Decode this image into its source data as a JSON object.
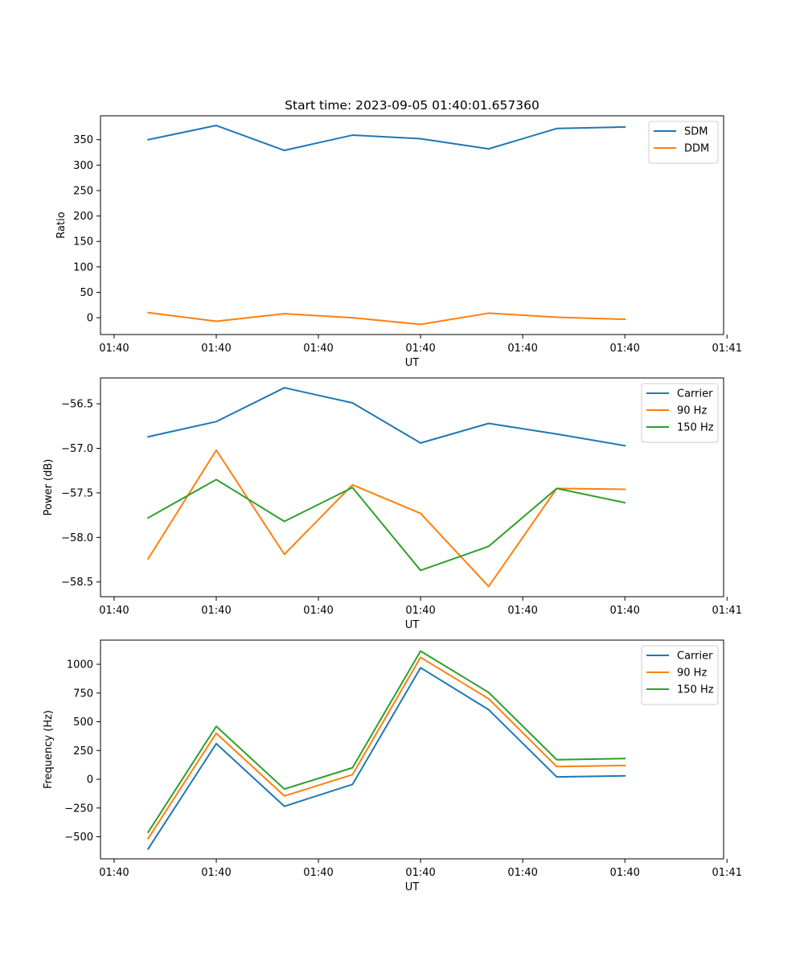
{
  "chart_data": [
    {
      "type": "line",
      "title": "Start time: 2023-09-05 01:40:01.657360",
      "xlabel": "UT",
      "ylabel": "Ratio",
      "x": [
        0.5,
        1.5,
        2.5,
        3.5,
        4.5,
        5.5,
        6.5,
        7.5
      ],
      "xlim": [
        -0.2,
        8.95
      ],
      "xticks": [
        0,
        1.5,
        3,
        4.5,
        6,
        7.5,
        9
      ],
      "xtick_labels": [
        "01:40",
        "01:40",
        "01:40",
        "01:40",
        "01:40",
        "01:40",
        "01:41"
      ],
      "ylim": [
        -33,
        397
      ],
      "yticks": [
        0,
        50,
        100,
        150,
        200,
        250,
        300,
        350
      ],
      "ytick_labels": [
        "0",
        "50",
        "100",
        "150",
        "200",
        "250",
        "300",
        "350"
      ],
      "legend_position": "top-right",
      "series": [
        {
          "name": "SDM",
          "color": "#1f77b4",
          "values": [
            350,
            378,
            329,
            359,
            352,
            332,
            372,
            375
          ]
        },
        {
          "name": "DDM",
          "color": "#ff7f0e",
          "values": [
            10,
            -7,
            8,
            0,
            -13,
            9,
            1,
            -3
          ]
        }
      ]
    },
    {
      "type": "line",
      "xlabel": "UT",
      "ylabel": "Power (dB)",
      "x": [
        0.5,
        1.5,
        2.5,
        3.5,
        4.5,
        5.5,
        6.5,
        7.5
      ],
      "xlim": [
        -0.2,
        8.95
      ],
      "xticks": [
        0,
        1.5,
        3,
        4.5,
        6,
        7.5,
        9
      ],
      "xtick_labels": [
        "01:40",
        "01:40",
        "01:40",
        "01:40",
        "01:40",
        "01:40",
        "01:41"
      ],
      "ylim": [
        -58.665,
        -56.21
      ],
      "yticks": [
        -58.5,
        -58.0,
        -57.5,
        -57.0,
        -56.5
      ],
      "ytick_labels": [
        "−58.5",
        "−58.0",
        "−57.5",
        "−57.0",
        "−56.5"
      ],
      "legend_position": "top-right",
      "series": [
        {
          "name": "Carrier",
          "color": "#1f77b4",
          "values": [
            -56.87,
            -56.7,
            -56.32,
            -56.49,
            -56.94,
            -56.72,
            -56.84,
            -56.97
          ]
        },
        {
          "name": "90 Hz",
          "color": "#ff7f0e",
          "values": [
            -58.24,
            -57.02,
            -58.19,
            -57.41,
            -57.73,
            -58.55,
            -57.45,
            -57.46
          ]
        },
        {
          "name": "150 Hz",
          "color": "#2ca02c",
          "values": [
            -57.78,
            -57.35,
            -57.82,
            -57.44,
            -58.37,
            -58.1,
            -57.45,
            -57.61
          ]
        }
      ]
    },
    {
      "type": "line",
      "xlabel": "UT",
      "ylabel": "Frequency (Hz)",
      "x": [
        0.5,
        1.5,
        2.5,
        3.5,
        4.5,
        5.5,
        6.5,
        7.5
      ],
      "xlim": [
        -0.2,
        8.95
      ],
      "xticks": [
        0,
        1.5,
        3,
        4.5,
        6,
        7.5,
        9
      ],
      "xtick_labels": [
        "01:40",
        "01:40",
        "01:40",
        "01:40",
        "01:40",
        "01:40",
        "01:41"
      ],
      "ylim": [
        -692,
        1210
      ],
      "yticks": [
        -500,
        -250,
        0,
        250,
        500,
        750,
        1000
      ],
      "ytick_labels": [
        "−500",
        "−250",
        "0",
        "250",
        "500",
        "750",
        "1000"
      ],
      "legend_position": "top-right",
      "series": [
        {
          "name": "Carrier",
          "color": "#1f77b4",
          "values": [
            -605,
            310,
            -235,
            -45,
            970,
            605,
            20,
            30
          ]
        },
        {
          "name": "90 Hz",
          "color": "#ff7f0e",
          "values": [
            -515,
            400,
            -145,
            40,
            1060,
            700,
            110,
            120
          ]
        },
        {
          "name": "150 Hz",
          "color": "#2ca02c",
          "values": [
            -460,
            460,
            -85,
            100,
            1115,
            755,
            170,
            180
          ]
        }
      ]
    }
  ]
}
